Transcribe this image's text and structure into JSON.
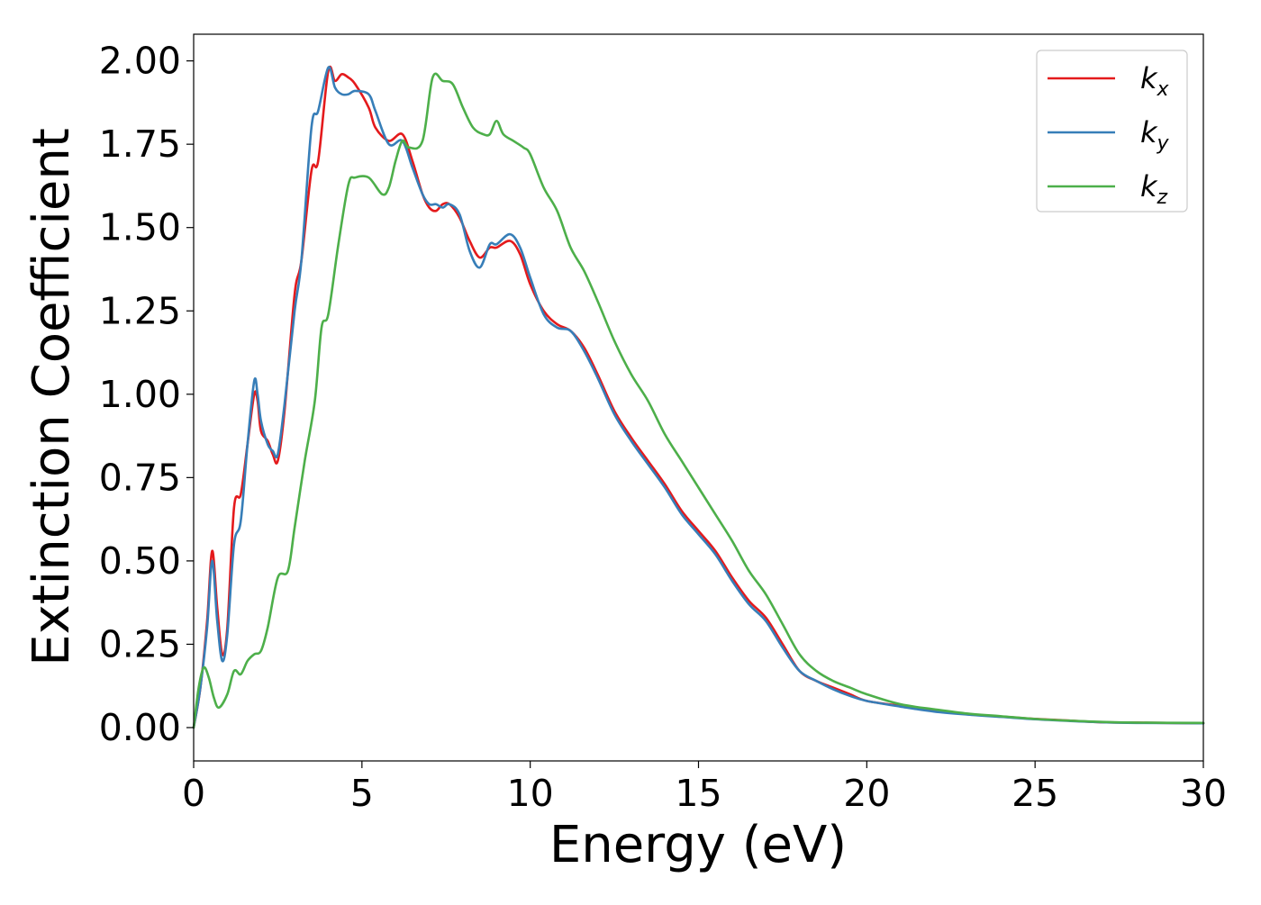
{
  "chart_data": {
    "type": "line",
    "xlabel": "Energy (eV)",
    "ylabel": "Extinction Coefficient",
    "xlim": [
      0,
      30
    ],
    "ylim": [
      -0.1,
      2.08
    ],
    "xticks": [
      0,
      5,
      10,
      15,
      20,
      25,
      30
    ],
    "xtick_labels": [
      "0",
      "5",
      "10",
      "15",
      "20",
      "25",
      "30"
    ],
    "yticks": [
      0,
      0.25,
      0.5,
      0.75,
      1.0,
      1.25,
      1.5,
      1.75,
      2.0
    ],
    "ytick_labels": [
      "0.00",
      "0.25",
      "0.50",
      "0.75",
      "1.00",
      "1.25",
      "1.50",
      "1.75",
      "2.00"
    ],
    "grid": false,
    "legend_position": "top-right",
    "series": [
      {
        "name": "k",
        "subscript": "x",
        "color": "#e41a1c",
        "points": [
          [
            0,
            0
          ],
          [
            0.2,
            0.12
          ],
          [
            0.4,
            0.32
          ],
          [
            0.55,
            0.53
          ],
          [
            0.7,
            0.36
          ],
          [
            0.85,
            0.22
          ],
          [
            1.0,
            0.3
          ],
          [
            1.2,
            0.66
          ],
          [
            1.4,
            0.7
          ],
          [
            1.6,
            0.85
          ],
          [
            1.8,
            1.0
          ],
          [
            1.9,
            0.98
          ],
          [
            2.0,
            0.89
          ],
          [
            2.2,
            0.86
          ],
          [
            2.35,
            0.82
          ],
          [
            2.5,
            0.8
          ],
          [
            2.7,
            0.95
          ],
          [
            3.0,
            1.3
          ],
          [
            3.2,
            1.4
          ],
          [
            3.5,
            1.67
          ],
          [
            3.7,
            1.7
          ],
          [
            4.0,
            1.97
          ],
          [
            4.2,
            1.94
          ],
          [
            4.4,
            1.96
          ],
          [
            4.6,
            1.95
          ],
          [
            4.8,
            1.93
          ],
          [
            5.2,
            1.86
          ],
          [
            5.4,
            1.8
          ],
          [
            5.8,
            1.76
          ],
          [
            6.2,
            1.78
          ],
          [
            6.5,
            1.7
          ],
          [
            6.8,
            1.6
          ],
          [
            7.0,
            1.56
          ],
          [
            7.2,
            1.55
          ],
          [
            7.4,
            1.57
          ],
          [
            7.6,
            1.57
          ],
          [
            7.9,
            1.53
          ],
          [
            8.2,
            1.46
          ],
          [
            8.5,
            1.41
          ],
          [
            8.8,
            1.44
          ],
          [
            9.0,
            1.44
          ],
          [
            9.4,
            1.46
          ],
          [
            9.7,
            1.42
          ],
          [
            10.0,
            1.33
          ],
          [
            10.4,
            1.25
          ],
          [
            10.8,
            1.21
          ],
          [
            11.2,
            1.19
          ],
          [
            11.6,
            1.14
          ],
          [
            12.0,
            1.06
          ],
          [
            12.5,
            0.95
          ],
          [
            13.0,
            0.87
          ],
          [
            13.5,
            0.8
          ],
          [
            14.0,
            0.73
          ],
          [
            14.5,
            0.65
          ],
          [
            15.0,
            0.59
          ],
          [
            15.5,
            0.53
          ],
          [
            16.0,
            0.45
          ],
          [
            16.5,
            0.38
          ],
          [
            17.0,
            0.33
          ],
          [
            17.5,
            0.25
          ],
          [
            18.0,
            0.17
          ],
          [
            18.5,
            0.14
          ],
          [
            19.0,
            0.12
          ],
          [
            19.5,
            0.1
          ],
          [
            20.0,
            0.08
          ],
          [
            21.0,
            0.065
          ],
          [
            22.0,
            0.05
          ],
          [
            23.0,
            0.04
          ],
          [
            24.0,
            0.033
          ],
          [
            25.0,
            0.026
          ],
          [
            26.0,
            0.021
          ],
          [
            27.0,
            0.016
          ],
          [
            28.0,
            0.015
          ],
          [
            30.0,
            0.013
          ]
        ]
      },
      {
        "name": "k",
        "subscript": "y",
        "color": "#377eb8",
        "points": [
          [
            0,
            0
          ],
          [
            0.2,
            0.12
          ],
          [
            0.4,
            0.3
          ],
          [
            0.55,
            0.5
          ],
          [
            0.7,
            0.32
          ],
          [
            0.85,
            0.2
          ],
          [
            1.0,
            0.28
          ],
          [
            1.2,
            0.55
          ],
          [
            1.4,
            0.62
          ],
          [
            1.6,
            0.85
          ],
          [
            1.8,
            1.04
          ],
          [
            1.9,
            1.0
          ],
          [
            2.0,
            0.92
          ],
          [
            2.2,
            0.85
          ],
          [
            2.35,
            0.83
          ],
          [
            2.5,
            0.82
          ],
          [
            2.7,
            0.97
          ],
          [
            3.0,
            1.25
          ],
          [
            3.2,
            1.4
          ],
          [
            3.5,
            1.8
          ],
          [
            3.7,
            1.85
          ],
          [
            4.0,
            1.98
          ],
          [
            4.2,
            1.92
          ],
          [
            4.4,
            1.9
          ],
          [
            4.6,
            1.9
          ],
          [
            4.8,
            1.91
          ],
          [
            5.2,
            1.9
          ],
          [
            5.4,
            1.85
          ],
          [
            5.8,
            1.75
          ],
          [
            6.2,
            1.76
          ],
          [
            6.5,
            1.68
          ],
          [
            6.8,
            1.6
          ],
          [
            7.0,
            1.57
          ],
          [
            7.2,
            1.57
          ],
          [
            7.4,
            1.56
          ],
          [
            7.6,
            1.57
          ],
          [
            7.9,
            1.54
          ],
          [
            8.2,
            1.43
          ],
          [
            8.5,
            1.38
          ],
          [
            8.8,
            1.45
          ],
          [
            9.0,
            1.45
          ],
          [
            9.4,
            1.48
          ],
          [
            9.7,
            1.44
          ],
          [
            10.0,
            1.35
          ],
          [
            10.4,
            1.24
          ],
          [
            10.8,
            1.2
          ],
          [
            11.2,
            1.19
          ],
          [
            11.6,
            1.13
          ],
          [
            12.0,
            1.05
          ],
          [
            12.5,
            0.94
          ],
          [
            13.0,
            0.86
          ],
          [
            13.5,
            0.79
          ],
          [
            14.0,
            0.72
          ],
          [
            14.5,
            0.64
          ],
          [
            15.0,
            0.58
          ],
          [
            15.5,
            0.52
          ],
          [
            16.0,
            0.44
          ],
          [
            16.5,
            0.37
          ],
          [
            17.0,
            0.32
          ],
          [
            17.5,
            0.24
          ],
          [
            18.0,
            0.17
          ],
          [
            18.5,
            0.14
          ],
          [
            19.0,
            0.115
          ],
          [
            19.5,
            0.095
          ],
          [
            20.0,
            0.08
          ],
          [
            21.0,
            0.063
          ],
          [
            22.0,
            0.048
          ],
          [
            23.0,
            0.039
          ],
          [
            24.0,
            0.032
          ],
          [
            25.0,
            0.025
          ],
          [
            26.0,
            0.02
          ],
          [
            27.0,
            0.016
          ],
          [
            28.0,
            0.014
          ],
          [
            30.0,
            0.013
          ]
        ]
      },
      {
        "name": "k",
        "subscript": "z",
        "color": "#4daf4a",
        "points": [
          [
            0,
            0
          ],
          [
            0.15,
            0.12
          ],
          [
            0.3,
            0.18
          ],
          [
            0.45,
            0.15
          ],
          [
            0.6,
            0.09
          ],
          [
            0.75,
            0.06
          ],
          [
            1.0,
            0.1
          ],
          [
            1.2,
            0.17
          ],
          [
            1.4,
            0.16
          ],
          [
            1.6,
            0.2
          ],
          [
            1.8,
            0.22
          ],
          [
            2.0,
            0.23
          ],
          [
            2.2,
            0.3
          ],
          [
            2.5,
            0.45
          ],
          [
            2.8,
            0.47
          ],
          [
            3.0,
            0.6
          ],
          [
            3.3,
            0.8
          ],
          [
            3.6,
            0.98
          ],
          [
            3.8,
            1.2
          ],
          [
            4.0,
            1.24
          ],
          [
            4.3,
            1.45
          ],
          [
            4.6,
            1.63
          ],
          [
            4.8,
            1.65
          ],
          [
            5.2,
            1.65
          ],
          [
            5.6,
            1.6
          ],
          [
            5.8,
            1.62
          ],
          [
            6.0,
            1.7
          ],
          [
            6.2,
            1.76
          ],
          [
            6.4,
            1.74
          ],
          [
            6.8,
            1.76
          ],
          [
            7.1,
            1.95
          ],
          [
            7.4,
            1.94
          ],
          [
            7.7,
            1.93
          ],
          [
            8.0,
            1.86
          ],
          [
            8.3,
            1.8
          ],
          [
            8.6,
            1.78
          ],
          [
            8.8,
            1.78
          ],
          [
            9.0,
            1.82
          ],
          [
            9.2,
            1.78
          ],
          [
            9.5,
            1.76
          ],
          [
            9.8,
            1.74
          ],
          [
            10.0,
            1.72
          ],
          [
            10.4,
            1.62
          ],
          [
            10.8,
            1.55
          ],
          [
            11.2,
            1.44
          ],
          [
            11.6,
            1.37
          ],
          [
            12.0,
            1.28
          ],
          [
            12.5,
            1.16
          ],
          [
            13.0,
            1.06
          ],
          [
            13.5,
            0.98
          ],
          [
            14.0,
            0.88
          ],
          [
            14.5,
            0.8
          ],
          [
            15.0,
            0.72
          ],
          [
            15.5,
            0.64
          ],
          [
            16.0,
            0.56
          ],
          [
            16.5,
            0.47
          ],
          [
            17.0,
            0.4
          ],
          [
            17.5,
            0.31
          ],
          [
            18.0,
            0.22
          ],
          [
            18.5,
            0.17
          ],
          [
            19.0,
            0.14
          ],
          [
            19.5,
            0.12
          ],
          [
            20.0,
            0.1
          ],
          [
            21.0,
            0.07
          ],
          [
            22.0,
            0.055
          ],
          [
            23.0,
            0.042
          ],
          [
            24.0,
            0.034
          ],
          [
            25.0,
            0.026
          ],
          [
            26.0,
            0.021
          ],
          [
            27.0,
            0.017
          ],
          [
            28.0,
            0.015
          ],
          [
            30.0,
            0.014
          ]
        ]
      }
    ]
  }
}
